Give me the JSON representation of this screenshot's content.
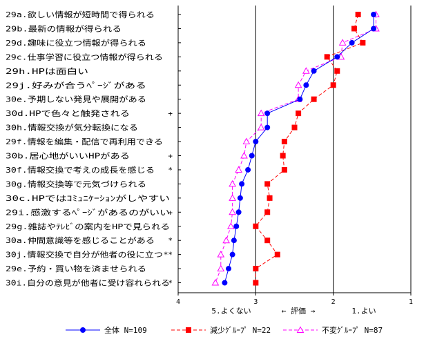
{
  "chart_data": {
    "type": "line",
    "orientation": "horizontal",
    "xlim": [
      4,
      1
    ],
    "x_ticks": [
      "4",
      "3",
      "2",
      "1"
    ],
    "x_axis_labels": {
      "left": "5.よくない",
      "middle": "← 評価 →",
      "right": "1.よい"
    },
    "grid": true,
    "legend_position": "bottom",
    "categories": [
      "29a.欲しい情報が短時間で得られる",
      "29b.最新の情報が得られる",
      "29d.趣味に役立つ情報が得られる",
      "29c.仕事学習に役立つ情報が得られる",
      "29h.HPは面白い",
      "29j.好みが合うﾍﾟｰｼﾞがある",
      "30e.予期しない発見や展開がある",
      "30d.HPで色々と触発される",
      "30h.情報交換が気分転換になる",
      "29f.情報を編集・配信で再利用できる",
      "30b.居心地がいいHPがある",
      "30f.情報交換で考えの成長を感じる",
      "30g.情報交換等で元気づけられる",
      "30c.HPではｺﾐｭﾆｹｰｼｮﾝがしやすい",
      "29i.感激するﾍﾟｰｼﾞがあるのがいい",
      "29g.雑誌やﾃﾚﾋﾞの案内をHPで見られる",
      "30a.仲間意識等を感じることがある",
      "30j.情報交換で自分が他者の役に立つ",
      "29e.予約・買い物を済ませられる",
      "30i.自分の意見が他者に受け容れられる"
    ],
    "significance": [
      "",
      "",
      "",
      "",
      "",
      "",
      "",
      "+",
      "",
      "",
      "+",
      "*",
      "",
      "",
      "+",
      "",
      "*",
      "**",
      "",
      "*"
    ],
    "series": [
      {
        "name": "全体 N=109",
        "color": "#0000ff",
        "marker": "circle",
        "dash": "solid",
        "values": [
          1.48,
          1.48,
          1.76,
          1.95,
          2.25,
          2.35,
          2.43,
          2.85,
          2.85,
          3.0,
          3.05,
          3.1,
          3.18,
          3.2,
          3.22,
          3.25,
          3.28,
          3.3,
          3.35,
          3.4
        ]
      },
      {
        "name": "減少ｸﾞﾙｰﾌﾟ N=22",
        "color": "#ff0000",
        "marker": "square",
        "dash": "dashed",
        "values": [
          1.68,
          1.73,
          1.62,
          2.08,
          1.95,
          2.0,
          2.25,
          2.45,
          2.5,
          2.63,
          2.65,
          2.63,
          2.85,
          2.82,
          2.85,
          3.0,
          2.85,
          2.72,
          3.0,
          3.0
        ]
      },
      {
        "name": "不変ｸﾞﾙｰﾌﾟ N=87",
        "color": "#ff00ff",
        "marker": "triangle",
        "dash": "dashed",
        "values": [
          1.45,
          1.45,
          1.88,
          1.9,
          2.35,
          2.45,
          2.45,
          2.93,
          2.93,
          3.12,
          3.15,
          3.22,
          3.3,
          3.3,
          3.3,
          3.32,
          3.38,
          3.45,
          3.45,
          3.52
        ]
      }
    ]
  }
}
